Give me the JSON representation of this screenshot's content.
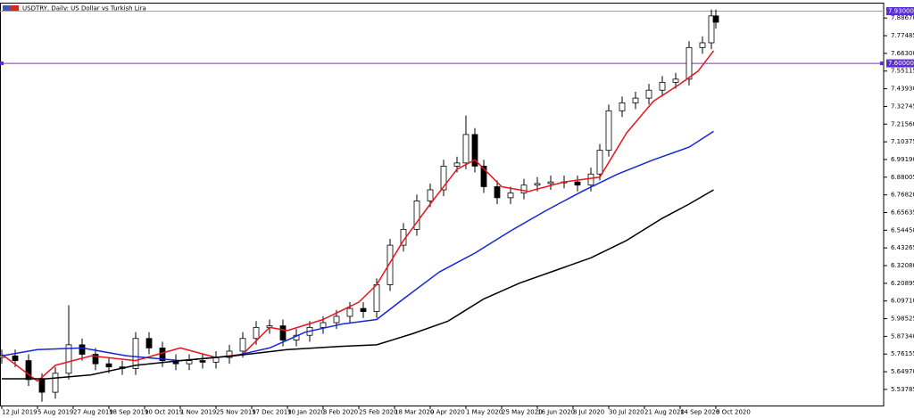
{
  "chart_data": {
    "type": "candlestick",
    "title": "USDTRY, Daily:  US Dollar vs Turkish Lira",
    "xlim": [
      -0.8,
      395.2
    ],
    "ylim": [
      5.436,
      7.978
    ],
    "xticks": [
      {
        "value": 0,
        "label": "12 Jul 2019"
      },
      {
        "value": 16,
        "label": "5 Aug 2019"
      },
      {
        "value": 32,
        "label": "27 Aug 2019"
      },
      {
        "value": 48,
        "label": "18 Sep 2019"
      },
      {
        "value": 64,
        "label": "10 Oct 2019"
      },
      {
        "value": 80,
        "label": "1 Nov 2019"
      },
      {
        "value": 96,
        "label": "25 Nov 2019"
      },
      {
        "value": 112,
        "label": "17 Dec 2019"
      },
      {
        "value": 128,
        "label": "10 Jan 2020"
      },
      {
        "value": 144,
        "label": "3 Feb 2020"
      },
      {
        "value": 160,
        "label": "25 Feb 2020"
      },
      {
        "value": 176,
        "label": "18 Mar 2020"
      },
      {
        "value": 192,
        "label": "9 Apr 2020"
      },
      {
        "value": 208,
        "label": "1 May 2020"
      },
      {
        "value": 224,
        "label": "25 May 2020"
      },
      {
        "value": 240,
        "label": "16 Jun 2020"
      },
      {
        "value": 256,
        "label": "8 Jul 2020"
      },
      {
        "value": 272,
        "label": "30 Jul 2020"
      },
      {
        "value": 288,
        "label": "21 Aug 2020"
      },
      {
        "value": 304,
        "label": "14 Sep 2020"
      },
      {
        "value": 320,
        "label": "6 Oct 2020"
      }
    ],
    "yticks": [
      {
        "value": 5.53785,
        "label": "5.53785"
      },
      {
        "value": 5.6497,
        "label": "5.64970"
      },
      {
        "value": 5.76155,
        "label": "5.76155"
      },
      {
        "value": 5.8734,
        "label": "5.87340"
      },
      {
        "value": 5.98525,
        "label": "5.98525"
      },
      {
        "value": 6.0971,
        "label": "6.09710"
      },
      {
        "value": 6.20895,
        "label": "6.20895"
      },
      {
        "value": 6.3208,
        "label": "6.32080"
      },
      {
        "value": 6.43265,
        "label": "6.43265"
      },
      {
        "value": 6.5445,
        "label": "6.54450"
      },
      {
        "value": 6.65635,
        "label": "6.65635"
      },
      {
        "value": 6.7682,
        "label": "6.76820"
      },
      {
        "value": 6.88005,
        "label": "6.88005"
      },
      {
        "value": 6.9919,
        "label": "6.99190"
      },
      {
        "value": 7.10375,
        "label": "7.10375"
      },
      {
        "value": 7.2156,
        "label": "7.21560"
      },
      {
        "value": 7.32745,
        "label": "7.32745"
      },
      {
        "value": 7.4393,
        "label": "7.43930"
      },
      {
        "value": 7.55115,
        "label": "7.55115"
      },
      {
        "value": 7.663,
        "label": "7.66300"
      },
      {
        "value": 7.77485,
        "label": "7.77485"
      },
      {
        "value": 7.8867,
        "label": "7.88670"
      }
    ],
    "candles": {
      "x": [
        0,
        6,
        12,
        18,
        24,
        30,
        36,
        42,
        48,
        54,
        60,
        66,
        72,
        78,
        84,
        90,
        96,
        102,
        108,
        114,
        120,
        126,
        132,
        138,
        144,
        150,
        156,
        162,
        168,
        174,
        180,
        186,
        192,
        198,
        204,
        208,
        212,
        216,
        222,
        228,
        234,
        240,
        246,
        252,
        258,
        264,
        268,
        272,
        278,
        284,
        290,
        296,
        302,
        308,
        314,
        318,
        320
      ],
      "open": [
        5.74,
        5.75,
        5.72,
        5.6,
        5.52,
        5.64,
        5.82,
        5.76,
        5.7,
        5.68,
        5.67,
        5.86,
        5.8,
        5.72,
        5.7,
        5.72,
        5.71,
        5.74,
        5.78,
        5.86,
        5.93,
        5.94,
        5.85,
        5.88,
        5.93,
        5.96,
        6.0,
        6.05,
        6.03,
        6.2,
        6.45,
        6.55,
        6.73,
        6.8,
        6.95,
        6.97,
        7.15,
        6.95,
        6.82,
        6.75,
        6.78,
        6.83,
        6.84,
        6.85,
        6.85,
        6.83,
        6.9,
        7.05,
        7.3,
        7.35,
        7.38,
        7.43,
        7.48,
        7.5,
        7.7,
        7.73,
        7.9
      ],
      "high": [
        5.79,
        5.79,
        5.76,
        5.64,
        5.68,
        6.07,
        5.86,
        5.8,
        5.74,
        5.72,
        5.9,
        5.9,
        5.84,
        5.76,
        5.76,
        5.76,
        5.78,
        5.82,
        5.9,
        5.97,
        5.98,
        5.98,
        5.92,
        5.97,
        6.0,
        6.04,
        6.09,
        6.09,
        6.24,
        6.49,
        6.59,
        6.77,
        6.84,
        6.99,
        7.01,
        7.27,
        7.19,
        6.99,
        6.86,
        6.82,
        6.87,
        6.88,
        6.89,
        6.89,
        6.89,
        6.94,
        7.09,
        7.34,
        7.39,
        7.42,
        7.47,
        7.52,
        7.54,
        7.74,
        7.77,
        7.94,
        7.94
      ],
      "low": [
        5.7,
        5.68,
        5.56,
        5.46,
        5.48,
        5.6,
        5.72,
        5.66,
        5.64,
        5.63,
        5.63,
        5.76,
        5.68,
        5.66,
        5.66,
        5.67,
        5.67,
        5.7,
        5.74,
        5.82,
        5.89,
        5.81,
        5.81,
        5.84,
        5.89,
        5.92,
        5.96,
        5.99,
        5.99,
        6.16,
        6.41,
        6.51,
        6.69,
        6.76,
        6.91,
        6.93,
        6.91,
        6.78,
        6.71,
        6.71,
        6.74,
        6.79,
        6.8,
        6.81,
        6.79,
        6.79,
        6.86,
        7.01,
        7.26,
        7.31,
        7.34,
        7.39,
        7.44,
        7.46,
        7.66,
        7.69,
        7.82
      ],
      "close": [
        5.75,
        5.72,
        5.6,
        5.52,
        5.64,
        5.82,
        5.76,
        5.7,
        5.68,
        5.67,
        5.86,
        5.8,
        5.72,
        5.7,
        5.72,
        5.71,
        5.74,
        5.78,
        5.86,
        5.93,
        5.94,
        5.85,
        5.88,
        5.93,
        5.96,
        6.0,
        6.05,
        6.03,
        6.2,
        6.45,
        6.55,
        6.73,
        6.8,
        6.95,
        6.97,
        7.15,
        6.95,
        6.82,
        6.75,
        6.78,
        6.83,
        6.84,
        6.85,
        6.85,
        6.83,
        6.9,
        7.05,
        7.3,
        7.35,
        7.38,
        7.43,
        7.48,
        7.5,
        7.7,
        7.73,
        7.9,
        7.86
      ],
      "up_color": "#ffffff",
      "down_color": "#000000",
      "outline_color": "#000000"
    },
    "series": [
      {
        "color": "#e8141c",
        "x": [
          0,
          16,
          24,
          40,
          60,
          80,
          96,
          108,
          120,
          128,
          144,
          160,
          168,
          180,
          192,
          204,
          212,
          224,
          236,
          252,
          268,
          280,
          292,
          304,
          312,
          319
        ],
        "values": [
          5.76,
          5.59,
          5.69,
          5.75,
          5.72,
          5.8,
          5.74,
          5.76,
          5.93,
          5.91,
          5.98,
          6.09,
          6.2,
          6.48,
          6.71,
          6.93,
          6.99,
          6.82,
          6.79,
          6.85,
          6.88,
          7.16,
          7.36,
          7.47,
          7.55,
          7.68
        ]
      },
      {
        "color": "#1428d8",
        "x": [
          0,
          16,
          36,
          56,
          80,
          104,
          120,
          136,
          152,
          168,
          180,
          196,
          212,
          228,
          244,
          260,
          276,
          292,
          308,
          319
        ],
        "values": [
          5.75,
          5.79,
          5.8,
          5.75,
          5.72,
          5.75,
          5.8,
          5.9,
          5.95,
          5.98,
          6.11,
          6.28,
          6.4,
          6.54,
          6.67,
          6.79,
          6.9,
          6.99,
          7.07,
          7.17
        ]
      },
      {
        "color": "#000000",
        "x": [
          0,
          20,
          40,
          60,
          80,
          104,
          128,
          152,
          168,
          184,
          200,
          216,
          232,
          248,
          264,
          280,
          296,
          308,
          319
        ],
        "values": [
          5.605,
          5.605,
          5.63,
          5.69,
          5.72,
          5.75,
          5.79,
          5.81,
          5.82,
          5.89,
          5.97,
          6.11,
          6.21,
          6.29,
          6.37,
          6.48,
          6.62,
          6.71,
          6.8
        ]
      }
    ],
    "price_lines": [
      {
        "value": 7.93,
        "label": "7.93000",
        "color": "#a0a0a0"
      },
      {
        "value": 7.6,
        "label": "7.60000",
        "color": "#8a2be2"
      }
    ],
    "label_color": "#5b2bd6"
  }
}
